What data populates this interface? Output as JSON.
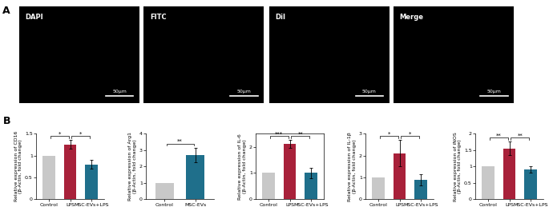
{
  "panel_labels": [
    "A",
    "B"
  ],
  "images": [
    {
      "label": "DAPI",
      "scale_bar": "50μm"
    },
    {
      "label": "FITC",
      "scale_bar": "50μm"
    },
    {
      "label": "DiI",
      "scale_bar": "50μm"
    },
    {
      "label": "Merge",
      "scale_bar": "50μm"
    }
  ],
  "chart_data": [
    {
      "type": "bar",
      "y_label": "Relative expression of CD16\n(β-Actin, fold change)",
      "categories": [
        "Control",
        "LPS",
        "MSC-EVs+LPS"
      ],
      "values": [
        1.0,
        1.25,
        0.8
      ],
      "errors": [
        0,
        0.1,
        0.1
      ],
      "colors": [
        "#c8c8c8",
        "#a8213a",
        "#1f6f8b"
      ],
      "ylim": [
        0,
        1.5
      ],
      "yticks": [
        0,
        0.5,
        1,
        1.5
      ],
      "significance": [
        {
          "from": 0,
          "to": 1,
          "label": "*"
        },
        {
          "from": 1,
          "to": 2,
          "label": "*"
        }
      ]
    },
    {
      "type": "bar",
      "y_label": "Relative expression of Arg1\n(β-Actin, fold change)",
      "categories": [
        "Control",
        "MSC-EVs"
      ],
      "values": [
        1.0,
        2.7
      ],
      "errors": [
        0,
        0.45
      ],
      "colors": [
        "#c8c8c8",
        "#1f6f8b"
      ],
      "ylim": [
        0,
        4
      ],
      "yticks": [
        0,
        1,
        2,
        3,
        4
      ],
      "significance": [
        {
          "from": 0,
          "to": 1,
          "label": "**"
        }
      ]
    },
    {
      "type": "bar",
      "y_label": "Relative expression of IL-6\n(β-Actin, fold change)",
      "categories": [
        "Control",
        "LPS",
        "MSC-EVs+LPS"
      ],
      "values": [
        1.0,
        2.1,
        1.0
      ],
      "errors": [
        0,
        0.15,
        0.2
      ],
      "colors": [
        "#c8c8c8",
        "#a8213a",
        "#1f6f8b"
      ],
      "ylim": [
        0,
        2.5
      ],
      "yticks": [
        0,
        1,
        2
      ],
      "significance": [
        {
          "from": 0,
          "to": 1,
          "label": "***"
        },
        {
          "from": 1,
          "to": 2,
          "label": "**"
        }
      ]
    },
    {
      "type": "bar",
      "y_label": "Relative expression of IL-1β\n(β-Actin, fold change)",
      "categories": [
        "Control",
        "LPS",
        "MSC-EVs+LPS"
      ],
      "values": [
        1.0,
        2.1,
        0.9
      ],
      "errors": [
        0,
        0.6,
        0.25
      ],
      "colors": [
        "#c8c8c8",
        "#a8213a",
        "#1f6f8b"
      ],
      "ylim": [
        0,
        3
      ],
      "yticks": [
        0,
        1,
        2,
        3
      ],
      "significance": [
        {
          "from": 0,
          "to": 1,
          "label": "*"
        },
        {
          "from": 1,
          "to": 2,
          "label": "*"
        }
      ]
    },
    {
      "type": "bar",
      "y_label": "Relative expression of iNOS\n(β-Actin, fold change)",
      "categories": [
        "Control",
        "LPS",
        "MSC-EVs+LPS"
      ],
      "values": [
        1.0,
        1.55,
        0.9
      ],
      "errors": [
        0,
        0.2,
        0.1
      ],
      "colors": [
        "#c8c8c8",
        "#a8213a",
        "#1f6f8b"
      ],
      "ylim": [
        0,
        2
      ],
      "yticks": [
        0,
        0.5,
        1,
        1.5,
        2
      ],
      "significance": [
        {
          "from": 0,
          "to": 1,
          "label": "**"
        },
        {
          "from": 1,
          "to": 2,
          "label": "**"
        }
      ]
    }
  ]
}
